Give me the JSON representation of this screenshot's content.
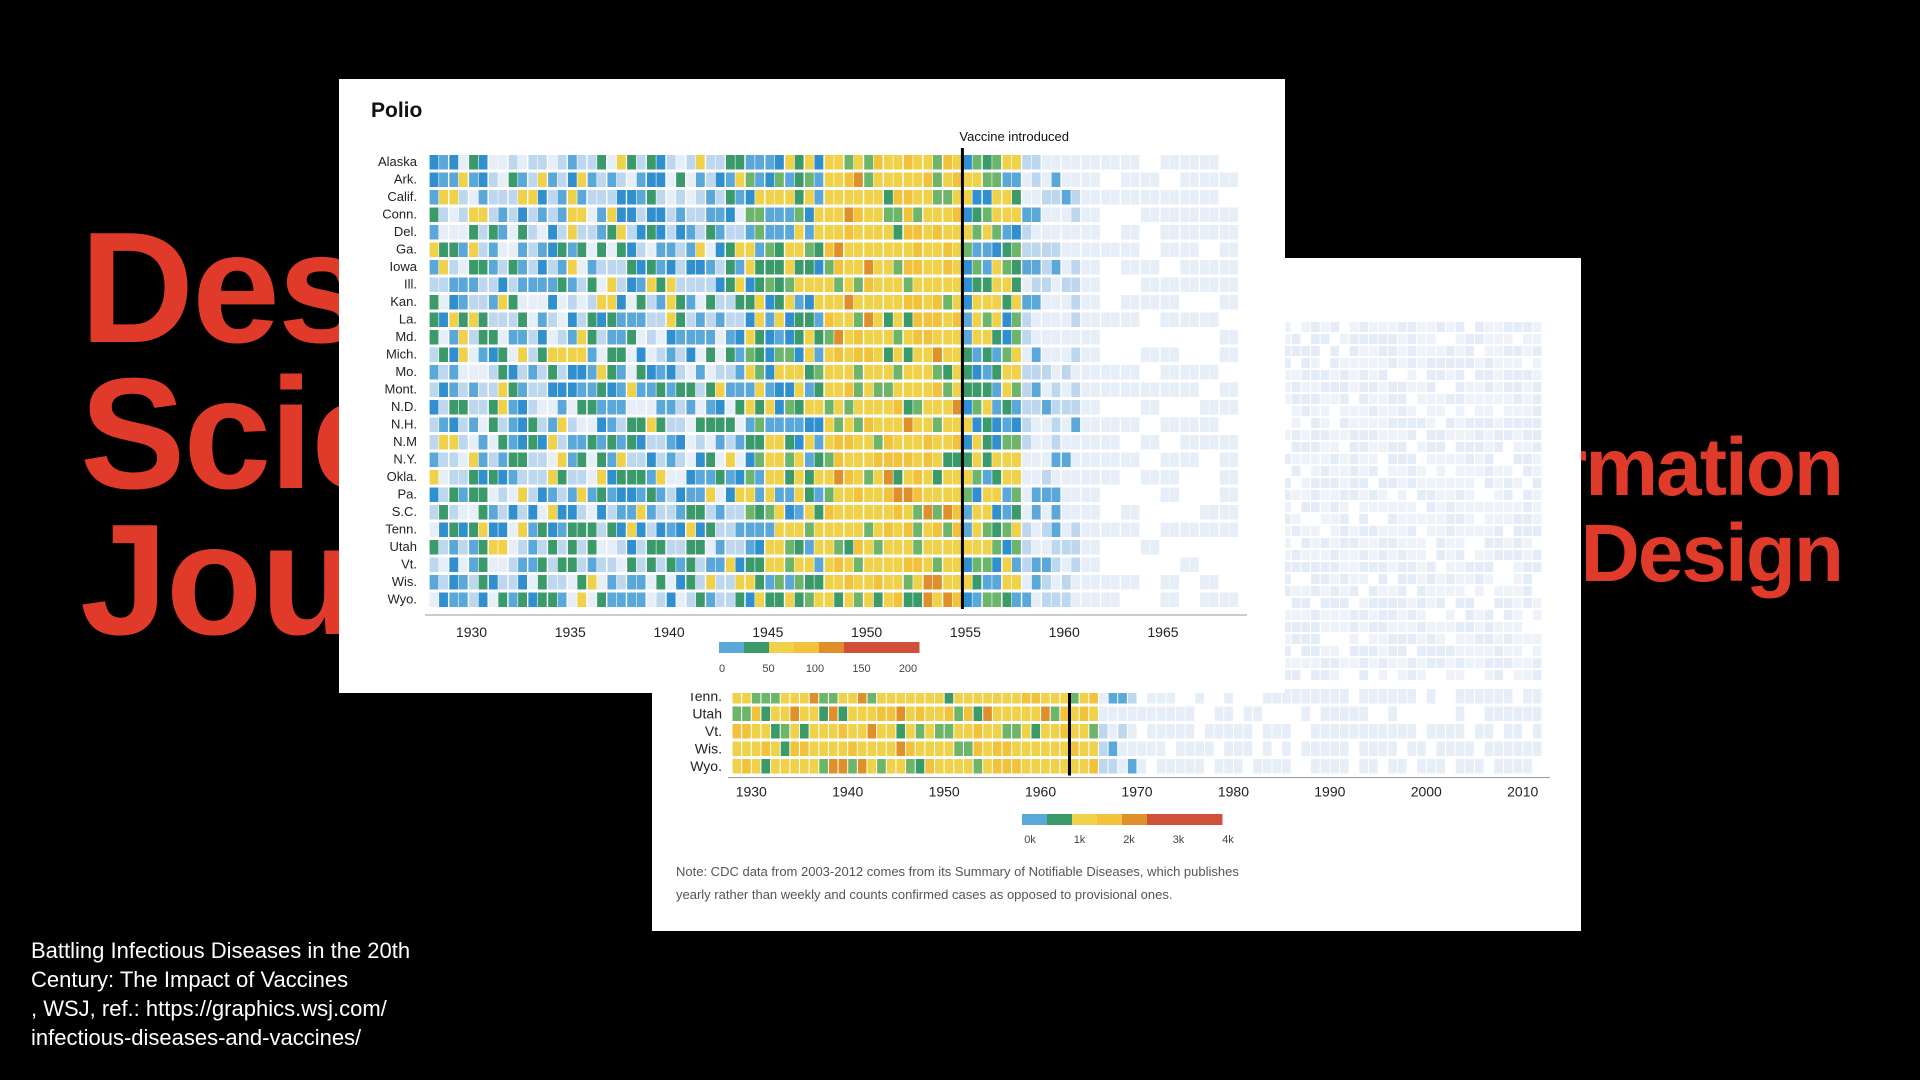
{
  "background": {
    "title_left_lines": [
      "Design,",
      "Science,",
      "Journalism"
    ],
    "title_right_lines": [
      "Information",
      "Design"
    ],
    "accent_color": "#e03a2a",
    "caption_lines": [
      "Battling Infectious Diseases in the 20th",
      "Century: The Impact of Vaccines",
      ", WSJ, ref.: https://graphics.wsj.com/",
      "infectious-diseases-and-vaccines/"
    ]
  },
  "colors": {
    "scale": [
      "#e6eef8",
      "#bcd7ee",
      "#5aa7d9",
      "#2f8fcf",
      "#3a9a6a",
      "#6cb56a",
      "#f0d24a",
      "#f2c23a",
      "#e0902a",
      "#d0503a"
    ]
  },
  "chart_data": [
    {
      "type": "heatmap",
      "title": "Polio",
      "annotation": "Vaccine introduced",
      "annotation_x": 1955,
      "states": [
        "Alaska",
        "Ark.",
        "Calif.",
        "Conn.",
        "Del.",
        "Ga.",
        "Iowa",
        "Ill.",
        "Kan.",
        "La.",
        "Md.",
        "Mich.",
        "Mo.",
        "Mont.",
        "N.D.",
        "N.H.",
        "N.M",
        "N.Y.",
        "Okla.",
        "Pa.",
        "S.C.",
        "Tenn.",
        "Utah",
        "Vt.",
        "Wis.",
        "Wyo."
      ],
      "x_ticks": [
        1930,
        1935,
        1940,
        1945,
        1950,
        1955,
        1960,
        1965
      ],
      "xlim": [
        1928,
        1969
      ],
      "legend_ticks": [
        "0",
        "50",
        "100",
        "150",
        "200"
      ]
    },
    {
      "type": "heatmap",
      "visible_states": [
        "Tenn.",
        "Utah",
        "Vt.",
        "Wis.",
        "Wyo."
      ],
      "x_ticks": [
        1930,
        1940,
        1950,
        1960,
        1970,
        1980,
        1990,
        2000,
        2010
      ],
      "xlim": [
        1928,
        2012
      ],
      "annotation_x": 1963,
      "legend_ticks": [
        "0k",
        "1k",
        "2k",
        "3k",
        "4k"
      ],
      "note_lines": [
        "Note: CDC data from 2003-2012 comes from its Summary of Notifiable Diseases, which publishes",
        "yearly rather than weekly and counts confirmed cases as opposed to provisional ones."
      ]
    }
  ]
}
